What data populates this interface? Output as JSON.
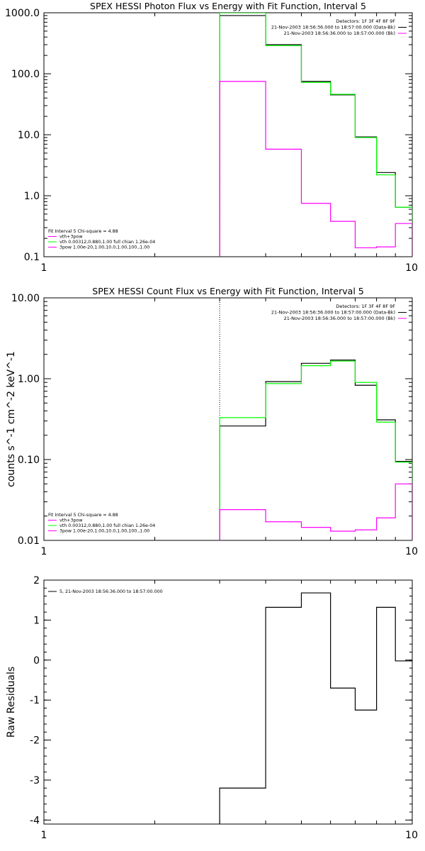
{
  "colors": {
    "black": "#000000",
    "green": "#00ff00",
    "magenta": "#ff00ff"
  },
  "chart_data": [
    {
      "type": "line",
      "title": "SPEX HESSI Photon Flux vs Energy with Fit Function, Interval 5",
      "xlabel": "",
      "ylabel": "",
      "x_scale": "log",
      "y_scale": "log",
      "xlim": [
        1,
        10
      ],
      "ylim": [
        0.1,
        1000
      ],
      "x_ticks": [
        "1",
        "10"
      ],
      "y_ticks": [
        "0.1",
        "1.0",
        "10.0",
        "100.0",
        "1000.0"
      ],
      "edges": [
        3,
        4,
        5,
        6,
        7,
        8,
        9,
        10
      ],
      "series": [
        {
          "color": "#000000",
          "values": [
            900,
            300,
            75,
            45,
            9.2,
            2.4,
            0.65
          ]
        },
        {
          "color": "#00ff00",
          "values": [
            1000,
            290,
            72,
            46,
            9.0,
            2.2,
            0.65
          ]
        },
        {
          "color": "#ff00ff",
          "values": [
            75,
            5.8,
            0.75,
            0.38,
            0.14,
            0.145,
            0.35
          ]
        }
      ],
      "annotations": [
        {
          "text": "Detectors: 1F 3F 4F 8F 9F",
          "color": "#000000"
        },
        {
          "text": "21-Nov-2003 18:56:36.000 to 18:57:00.000 (Data-Bk)",
          "color": "#000000"
        },
        {
          "text": "21-Nov-2003 18:56:36.000 to 18:57:00.000 (Bk)",
          "color": "#ff00ff"
        }
      ],
      "legend": [
        {
          "text": "Fit Interval 5   Chi-square = 4.88",
          "color": "#000000"
        },
        {
          "text": "vth+3pow",
          "color": "#ff00ff"
        },
        {
          "text": "vth 0.00312,0.880,1.00  full chian 1.26e-04",
          "color": "#00ff00"
        },
        {
          "text": "3pow 1.00e-20,1.00,10.0,1.00,100.,1.00",
          "color": "#ff00ff"
        }
      ],
      "legend_position": "bottom-left"
    },
    {
      "type": "line",
      "title": "SPEX HESSI Count Flux vs Energy with Fit Function, Interval 5",
      "xlabel": "",
      "ylabel": "counts s^-1 cm^-2 keV^-1",
      "x_scale": "log",
      "y_scale": "log",
      "xlim": [
        1,
        10
      ],
      "ylim": [
        0.01,
        10
      ],
      "x_ticks": [
        "1",
        "10"
      ],
      "y_ticks": [
        "0.01",
        "0.10",
        "1.00",
        "10.00"
      ],
      "edges": [
        3,
        4,
        5,
        6,
        7,
        8,
        9,
        10
      ],
      "series": [
        {
          "color": "#000000",
          "values": [
            0.26,
            0.92,
            1.55,
            1.7,
            0.83,
            0.31,
            0.095
          ]
        },
        {
          "color": "#00ff00",
          "values": [
            0.33,
            0.87,
            1.45,
            1.65,
            0.9,
            0.29,
            0.093
          ]
        },
        {
          "color": "#ff00ff",
          "values": [
            0.024,
            0.017,
            0.0145,
            0.013,
            0.0135,
            0.019,
            0.05
          ]
        }
      ],
      "annotations": [
        {
          "text": "Detectors: 1F 3F 4F 8F 9F",
          "color": "#000000"
        },
        {
          "text": "21-Nov-2003 18:56:36.000 to 18:57:00.000 (Data-Bk)",
          "color": "#000000"
        },
        {
          "text": "21-Nov-2003 18:56:36.000 to 18:57:00.000 (Bk)",
          "color": "#ff00ff"
        }
      ],
      "legend": [
        {
          "text": "Fit Interval 5   Chi-square = 4.88",
          "color": "#000000"
        },
        {
          "text": "vth+3pow",
          "color": "#ff00ff"
        },
        {
          "text": "vth 0.00312,0.880,1.00  full chian 1.26e-04",
          "color": "#00ff00"
        },
        {
          "text": "3pow 1.00e-20,1.00,10.0,1.00,100.,1.00",
          "color": "#ff00ff"
        }
      ],
      "legend_position": "bottom-left"
    },
    {
      "type": "line",
      "title": "",
      "xlabel": "",
      "ylabel": "Raw Residuals",
      "x_scale": "log",
      "y_scale": "linear",
      "xlim": [
        1,
        10
      ],
      "ylim": [
        -4.1,
        2
      ],
      "x_ticks": [
        "1",
        "10"
      ],
      "y_ticks": [
        "-4",
        "-3",
        "-2",
        "-1",
        "0",
        "1",
        "2"
      ],
      "edges": [
        3,
        4,
        5,
        6,
        7,
        8,
        9,
        10
      ],
      "series": [
        {
          "color": "#000000",
          "values": [
            -3.2,
            1.32,
            1.68,
            -0.7,
            -1.25,
            1.32,
            -0.02
          ]
        }
      ],
      "legend": [
        {
          "text": "5, 21-Nov-2003 18:56:36.000 to 18:57:00.000",
          "color": "#000000"
        }
      ],
      "legend_position": "top-left"
    }
  ]
}
